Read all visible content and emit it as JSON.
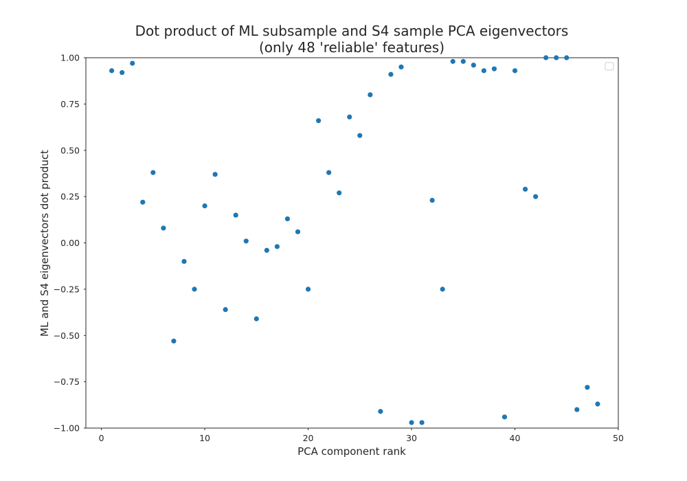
{
  "chart_data": {
    "type": "scatter",
    "title": "Dot product of ML subsample and S4 sample PCA eigenvectors",
    "subtitle": "(only 48 'reliable' features)",
    "xlabel": "PCA component rank",
    "ylabel": "ML and S4 eigenvectors dot product",
    "xlim": [
      -1.5,
      50
    ],
    "ylim": [
      -1.0,
      1.0
    ],
    "xticks": [
      0,
      10,
      20,
      30,
      40,
      50
    ],
    "xtick_labels": [
      "0",
      "10",
      "20",
      "30",
      "40",
      "50"
    ],
    "yticks": [
      -1.0,
      -0.75,
      -0.5,
      -0.25,
      0.0,
      0.25,
      0.5,
      0.75,
      1.0
    ],
    "ytick_labels": [
      "−1.00",
      "−0.75",
      "−0.50",
      "−0.25",
      "0.00",
      "0.25",
      "0.50",
      "0.75",
      "1.00"
    ],
    "grid": false,
    "legend": "upper right (empty)",
    "marker_color": "#1f77b4",
    "series": [
      {
        "x": [
          1,
          2,
          3,
          4,
          5,
          6,
          7,
          8,
          9,
          10,
          11,
          12,
          13,
          14,
          15,
          16,
          17,
          18,
          19,
          20,
          21,
          22,
          23,
          24,
          25,
          26,
          27,
          28,
          29,
          30,
          31,
          32,
          33,
          34,
          35,
          36,
          37,
          38,
          39,
          40,
          41,
          42,
          43,
          44,
          45,
          46,
          47,
          48
        ],
        "y": [
          0.93,
          0.92,
          0.97,
          0.22,
          0.38,
          0.08,
          -0.53,
          -0.1,
          -0.25,
          0.2,
          0.37,
          -0.36,
          0.15,
          0.01,
          -0.41,
          -0.04,
          -0.02,
          0.13,
          0.06,
          -0.25,
          0.66,
          0.38,
          0.27,
          0.68,
          0.58,
          0.8,
          -0.91,
          0.91,
          0.95,
          -0.97,
          -0.97,
          0.23,
          -0.25,
          0.98,
          0.98,
          0.96,
          0.93,
          0.94,
          -0.94,
          0.93,
          0.29,
          0.25,
          1.0,
          1.0,
          1.0,
          -0.9,
          -0.78,
          -0.87
        ]
      }
    ]
  }
}
